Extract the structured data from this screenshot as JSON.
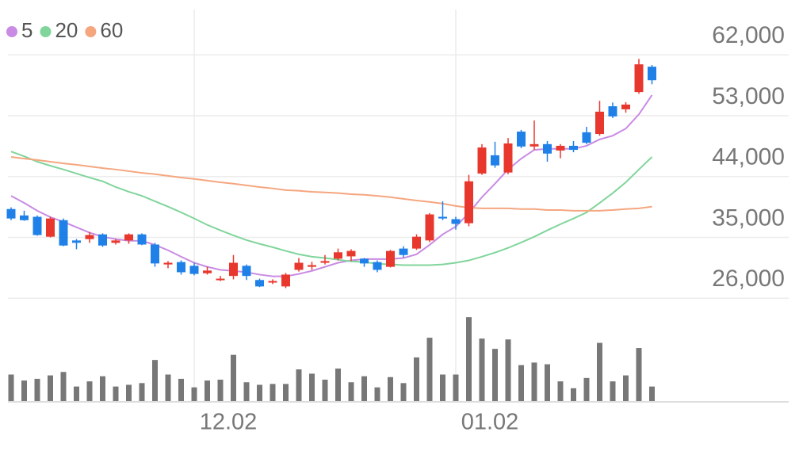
{
  "chart_data": {
    "type": "candlestick",
    "categories": [
      null,
      null,
      null,
      null,
      null,
      null,
      null,
      null,
      null,
      null,
      null,
      null,
      null,
      null,
      "12.02",
      null,
      null,
      null,
      null,
      null,
      null,
      null,
      null,
      null,
      null,
      null,
      null,
      null,
      null,
      null,
      null,
      null,
      null,
      null,
      "01.02",
      null,
      null,
      null,
      null,
      null,
      null,
      null,
      null,
      null,
      null,
      null,
      null,
      null,
      null,
      null
    ],
    "open": [
      39200,
      38250,
      38050,
      35100,
      37550,
      34550,
      34750,
      35450,
      34200,
      34550,
      35450,
      33950,
      31000,
      31350,
      30800,
      29700,
      28700,
      29300,
      30800,
      28700,
      28350,
      27750,
      30200,
      30650,
      31250,
      31850,
      32200,
      31850,
      31350,
      30650,
      33350,
      33350,
      34550,
      38050,
      37700,
      37100,
      44450,
      47150,
      44600,
      50650,
      48450,
      48800,
      47850,
      48550,
      50550,
      50300,
      54400,
      53950,
      56500,
      60250
    ],
    "high": [
      39450,
      38950,
      38250,
      38050,
      37800,
      34750,
      35800,
      35600,
      34750,
      35600,
      35600,
      34200,
      31500,
      31600,
      31250,
      30650,
      29300,
      32400,
      31000,
      28900,
      28800,
      29750,
      31950,
      31400,
      32400,
      33350,
      33250,
      31950,
      31600,
      33150,
      33700,
      35450,
      38600,
      40350,
      38050,
      44250,
      48800,
      49150,
      49700,
      50900,
      52300,
      49250,
      48800,
      49250,
      51350,
      55200,
      54950,
      55000,
      61400,
      60500
    ],
    "low": [
      37550,
      37450,
      35250,
      35000,
      33700,
      33250,
      34200,
      33600,
      33950,
      34050,
      33850,
      30650,
      30450,
      29500,
      29400,
      29500,
      28550,
      28800,
      28700,
      27650,
      28100,
      27500,
      29950,
      30200,
      31000,
      31600,
      31500,
      30650,
      29850,
      30550,
      32050,
      33150,
      34300,
      37550,
      36150,
      36650,
      44250,
      45300,
      44350,
      48200,
      47950,
      46200,
      46700,
      47600,
      48800,
      50050,
      52650,
      53450,
      56250,
      57650
    ],
    "close": [
      37800,
      37550,
      35350,
      37800,
      33800,
      34200,
      35350,
      33800,
      34550,
      35450,
      33950,
      31150,
      31250,
      29850,
      29600,
      30100,
      28900,
      31250,
      29300,
      27750,
      28550,
      29500,
      31250,
      30900,
      31500,
      32800,
      33000,
      31150,
      30200,
      33000,
      32400,
      35100,
      38400,
      37800,
      37000,
      43300,
      48300,
      45650,
      48900,
      48450,
      48800,
      47400,
      48550,
      47950,
      49000,
      53600,
      52900,
      54650,
      60600,
      58250
    ],
    "volume": [
      31,
      24,
      26,
      30,
      34,
      17,
      23,
      29,
      17,
      19,
      21,
      48,
      31,
      26,
      16,
      24,
      25,
      54,
      22,
      19,
      20,
      20,
      37,
      32,
      25,
      38,
      22,
      29,
      16,
      28,
      21,
      51,
      74,
      31,
      31,
      98,
      73,
      61,
      72,
      42,
      45,
      43,
      23,
      15,
      27,
      68,
      23,
      30,
      62,
      17
    ],
    "volume_ylim": [
      0,
      100
    ],
    "up_color": "#e8382e",
    "down_color": "#1f80e8",
    "volume_color": "#777777",
    "series": [
      {
        "name": "5",
        "color": "#c98be3",
        "values": [
          41150,
          40100,
          38950,
          38000,
          37300,
          36500,
          35700,
          35100,
          34750,
          34500,
          34500,
          33900,
          33100,
          32150,
          31250,
          30650,
          30200,
          30050,
          29850,
          29500,
          29250,
          29250,
          29600,
          30050,
          30650,
          31250,
          31600,
          31800,
          31800,
          31800,
          31950,
          32500,
          33900,
          35450,
          36600,
          38600,
          40950,
          42950,
          45050,
          46650,
          47950,
          48100,
          48100,
          48100,
          48550,
          49500,
          50050,
          51100,
          53200,
          56050
        ]
      },
      {
        "name": "20",
        "color": "#80d59b",
        "values": [
          47700,
          47000,
          46200,
          45600,
          45050,
          44450,
          43850,
          43300,
          42450,
          41750,
          41150,
          40350,
          39550,
          38700,
          37800,
          36850,
          36050,
          35300,
          34600,
          34050,
          33550,
          33000,
          32500,
          32150,
          31950,
          31700,
          31450,
          31350,
          31100,
          31000,
          30900,
          30900,
          30900,
          31000,
          31250,
          31600,
          32150,
          32750,
          33450,
          34250,
          35100,
          36050,
          36950,
          37800,
          38700,
          40100,
          41550,
          43150,
          45050,
          46900
        ]
      },
      {
        "name": "60",
        "color": "#f5a67f",
        "values": [
          46900,
          46650,
          46450,
          46200,
          45950,
          45750,
          45500,
          45250,
          45050,
          44800,
          44550,
          44350,
          44100,
          43850,
          43650,
          43400,
          43150,
          42950,
          42700,
          42450,
          42250,
          42000,
          41900,
          41750,
          41650,
          41550,
          41400,
          41300,
          41150,
          40950,
          40700,
          40450,
          40250,
          40000,
          39650,
          39400,
          39300,
          39300,
          39300,
          39200,
          39200,
          39050,
          39050,
          38950,
          38950,
          38950,
          39050,
          39200,
          39300,
          39550
        ]
      }
    ],
    "ylim": [
      22400,
      66600
    ],
    "yticks": [
      {
        "value": 62000,
        "label": "62,000"
      },
      {
        "value": 53000,
        "label": "53,000"
      },
      {
        "value": 44000,
        "label": "44,000"
      },
      {
        "value": 35000,
        "label": "35,000"
      },
      {
        "value": 26000,
        "label": "26,000"
      }
    ],
    "grid": true
  }
}
